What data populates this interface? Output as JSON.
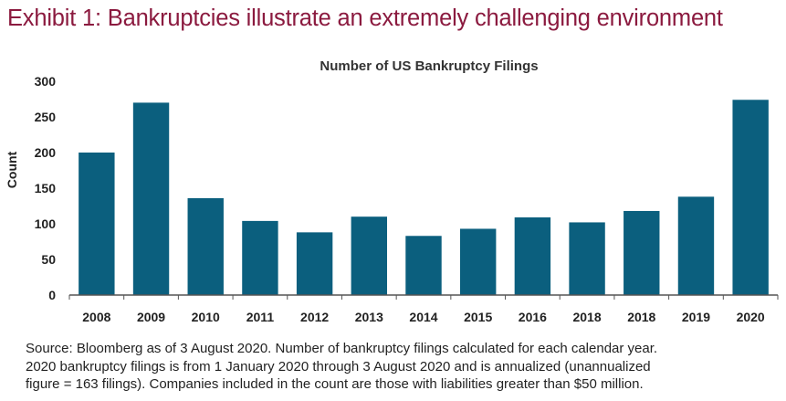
{
  "exhibit_title": "Exhibit 1: Bankruptcies illustrate an extremely challenging environment",
  "source_lines": [
    "Source: Bloomberg as of 3 August 2020. Number of bankruptcy filings calculated for each calendar year.",
    "2020 bankruptcy filings is from 1 January 2020 through 3 August 2020 and is annualized (unannualized",
    "figure = 163 filings). Companies included in the count are those with liabilities greater than $50 million."
  ],
  "chart_data": {
    "type": "bar",
    "title": "Number of US Bankruptcy Filings",
    "xlabel": "",
    "ylabel": "Count",
    "categories": [
      "2008",
      "2009",
      "2010",
      "2011",
      "2012",
      "2013",
      "2014",
      "2015",
      "2016",
      "2018",
      "2018",
      "2019",
      "2020"
    ],
    "values": [
      200,
      270,
      136,
      104,
      88,
      110,
      83,
      93,
      109,
      102,
      118,
      138,
      274
    ],
    "ylim": [
      0,
      300
    ],
    "yticks": [
      0,
      50,
      100,
      150,
      200,
      250,
      300
    ],
    "grid": false,
    "bar_color": "#0b5f7e",
    "axis_color": "#555555"
  }
}
